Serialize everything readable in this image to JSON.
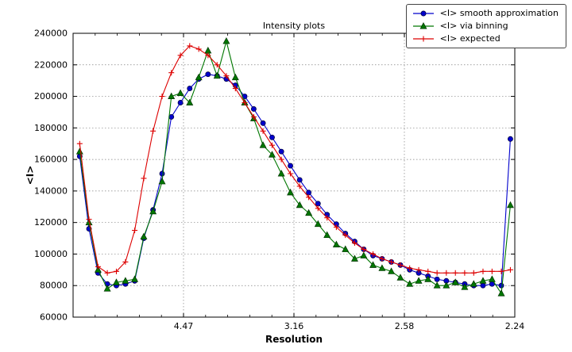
{
  "chart_data": {
    "type": "line",
    "title": "Intensity plots",
    "xlabel": "Resolution",
    "ylabel": "<I>",
    "grid": true,
    "legend_position": "top-right-outside",
    "xlim": [
      0,
      0.2
    ],
    "ylim": [
      60000,
      240000
    ],
    "y_ticks": [
      60000,
      80000,
      100000,
      120000,
      140000,
      160000,
      180000,
      200000,
      220000,
      240000
    ],
    "x_ticks": [
      {
        "value": 0.05,
        "label": "4.47"
      },
      {
        "value": 0.1,
        "label": "3.16"
      },
      {
        "value": 0.15,
        "label": "2.58"
      },
      {
        "value": 0.2,
        "label": "2.24"
      }
    ],
    "x_minor_ticks": [
      0.01,
      0.02,
      0.03,
      0.04,
      0.06,
      0.07,
      0.08,
      0.09,
      0.11,
      0.12,
      0.13,
      0.14,
      0.16,
      0.17,
      0.18,
      0.19
    ],
    "x": [
      0.003,
      0.0072,
      0.0113,
      0.0155,
      0.0196,
      0.0237,
      0.0279,
      0.032,
      0.0362,
      0.0403,
      0.0445,
      0.0486,
      0.0528,
      0.0569,
      0.0611,
      0.0652,
      0.0694,
      0.0735,
      0.0777,
      0.0818,
      0.086,
      0.0901,
      0.0943,
      0.0984,
      0.1026,
      0.1067,
      0.1109,
      0.115,
      0.1192,
      0.1233,
      0.1275,
      0.1316,
      0.1358,
      0.1399,
      0.1441,
      0.1482,
      0.1524,
      0.1565,
      0.1607,
      0.1648,
      0.169,
      0.1731,
      0.1773,
      0.1814,
      0.1856,
      0.1897,
      0.1939,
      0.198
    ],
    "series": [
      {
        "name": "<I> smooth approximation",
        "color": "#0000cc",
        "marker": "circle",
        "values": [
          162000,
          116000,
          88000,
          81000,
          80000,
          81000,
          83000,
          110000,
          128000,
          151000,
          187000,
          196000,
          205000,
          211000,
          214000,
          213000,
          211000,
          207000,
          200000,
          192000,
          183000,
          174000,
          165000,
          156000,
          147000,
          139000,
          132000,
          125000,
          119000,
          113000,
          108000,
          103000,
          99000,
          97000,
          95000,
          93000,
          90000,
          88000,
          86000,
          84000,
          83000,
          82000,
          81000,
          80000,
          80000,
          81000,
          80000,
          173000
        ]
      },
      {
        "name": "<I> via binning",
        "color": "#007700",
        "marker": "triangle",
        "values": [
          165000,
          120000,
          90000,
          78000,
          82000,
          83000,
          84000,
          111000,
          127000,
          146000,
          200000,
          202000,
          196000,
          212000,
          229000,
          213000,
          235000,
          212000,
          196000,
          186000,
          169000,
          163000,
          151000,
          139000,
          131000,
          126000,
          119000,
          112000,
          106000,
          103000,
          97000,
          99000,
          93000,
          91000,
          89000,
          85000,
          81000,
          83000,
          84000,
          80000,
          80000,
          82000,
          79000,
          81000,
          83000,
          84000,
          75000,
          131000
        ]
      },
      {
        "name": "<I> expected",
        "color": "#dd0000",
        "marker": "plus",
        "values": [
          170000,
          122000,
          92000,
          88000,
          89000,
          95000,
          115000,
          148000,
          178000,
          200000,
          215000,
          226000,
          232000,
          230000,
          226000,
          220000,
          213000,
          205000,
          196000,
          187000,
          178000,
          169000,
          160000,
          151000,
          143000,
          136000,
          129000,
          123000,
          117000,
          112000,
          107000,
          103000,
          100000,
          97000,
          95000,
          93000,
          91000,
          90000,
          89000,
          88000,
          88000,
          88000,
          88000,
          88000,
          89000,
          89000,
          89000,
          90000
        ]
      }
    ]
  }
}
